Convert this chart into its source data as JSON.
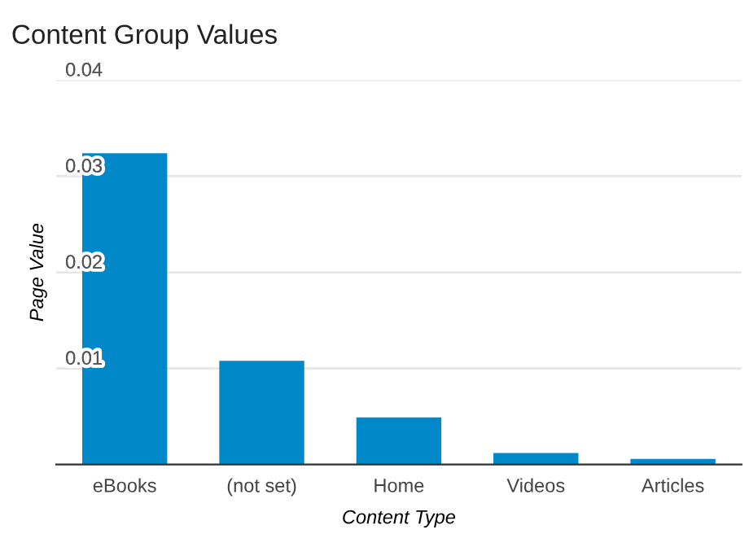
{
  "chart_data": {
    "type": "bar",
    "title": "Content Group Values",
    "xlabel": "Content Type",
    "ylabel": "Page Value",
    "categories": [
      "eBooks",
      "(not set)",
      "Home",
      "Videos",
      "Articles"
    ],
    "series": [
      {
        "color": "#0088c8",
        "values": [
          0.0324,
          0.0108,
          0.0049,
          0.0012,
          0.0006
        ]
      }
    ],
    "ylim": [
      0,
      0.04
    ],
    "yticks": [
      {
        "value": 0,
        "label": null
      },
      0.01,
      0.02,
      0.03,
      0.04
    ],
    "grid": "y",
    "legend": false
  }
}
